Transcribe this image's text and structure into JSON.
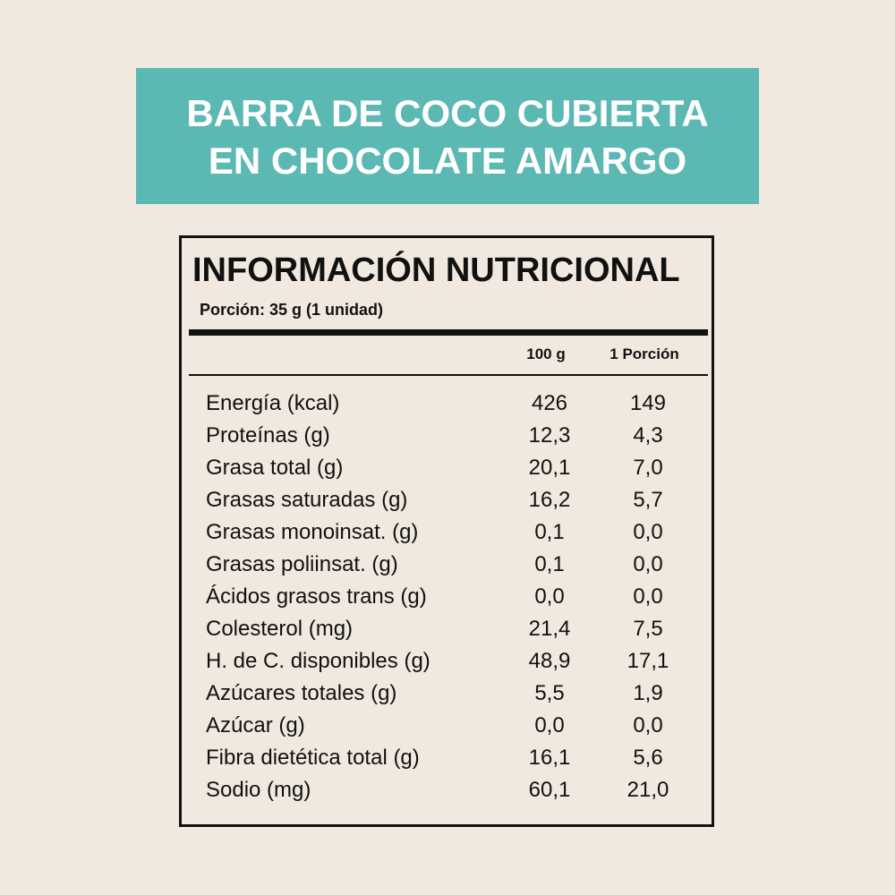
{
  "header": {
    "title_lines": [
      "BARRA DE COCO CUBIERTA",
      "EN CHOCOLATE AMARGO"
    ]
  },
  "label": {
    "title": "INFORMACIÓN NUTRICIONAL",
    "portion": "Porción: 35 g (1 unidad)",
    "columns": [
      "100 g",
      "1 Porción"
    ],
    "rows": [
      [
        "Energía (kcal)",
        "426",
        "149"
      ],
      [
        "Proteínas (g)",
        "12,3",
        "4,3"
      ],
      [
        "Grasa total (g)",
        "20,1",
        "7,0"
      ],
      [
        "Grasas saturadas (g)",
        "16,2",
        "5,7"
      ],
      [
        "Grasas monoinsat. (g)",
        "0,1",
        "0,0"
      ],
      [
        "Grasas poliinsat. (g)",
        "0,1",
        "0,0"
      ],
      [
        "Ácidos grasos trans (g)",
        "0,0",
        "0,0"
      ],
      [
        "Colesterol (mg)",
        "21,4",
        "7,5"
      ],
      [
        "H. de C. disponibles (g)",
        "48,9",
        "17,1"
      ],
      [
        "Azúcares totales (g)",
        "5,5",
        "1,9"
      ],
      [
        "Azúcar (g)",
        "0,0",
        "0,0"
      ],
      [
        "Fibra dietética total (g)",
        "16,1",
        "5,6"
      ],
      [
        "Sodio (mg)",
        "60,1",
        "21,0"
      ]
    ]
  }
}
